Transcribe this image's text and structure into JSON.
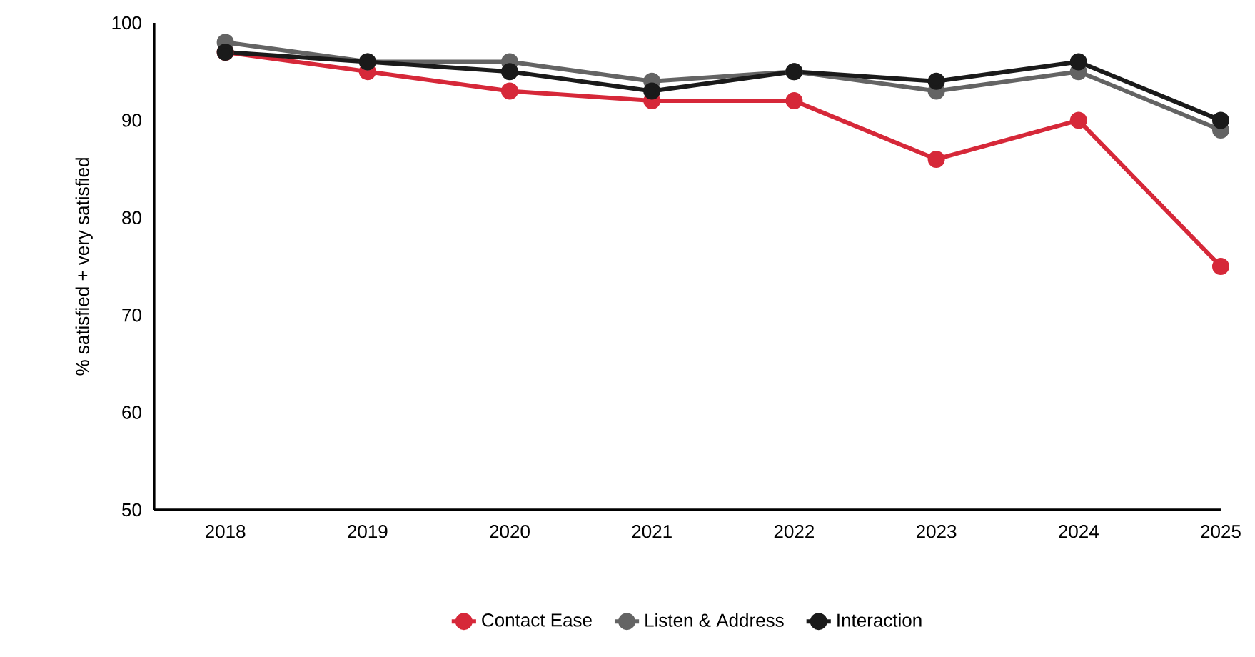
{
  "chart_data": {
    "type": "line",
    "ylabel": "% satisfied + very satisfied",
    "categories": [
      "2018",
      "2019",
      "2020",
      "2021",
      "2022",
      "2023",
      "2024",
      "2025"
    ],
    "series": [
      {
        "name": "Contact Ease",
        "color": "#d62839",
        "values": [
          97,
          95,
          93,
          92,
          92,
          86,
          90,
          75
        ]
      },
      {
        "name": "Listen & Address",
        "color": "#646464",
        "values": [
          98,
          96,
          96,
          94,
          95,
          93,
          95,
          89
        ]
      },
      {
        "name": "Interaction",
        "color": "#1a1a1a",
        "values": [
          97,
          96,
          95,
          93,
          95,
          94,
          96,
          90
        ]
      }
    ],
    "ylim": [
      50,
      100
    ],
    "yticks": [
      50,
      60,
      70,
      80,
      90,
      100
    ],
    "marker": "circle",
    "line_style": "solid",
    "legend": "bottom",
    "grid": false
  }
}
